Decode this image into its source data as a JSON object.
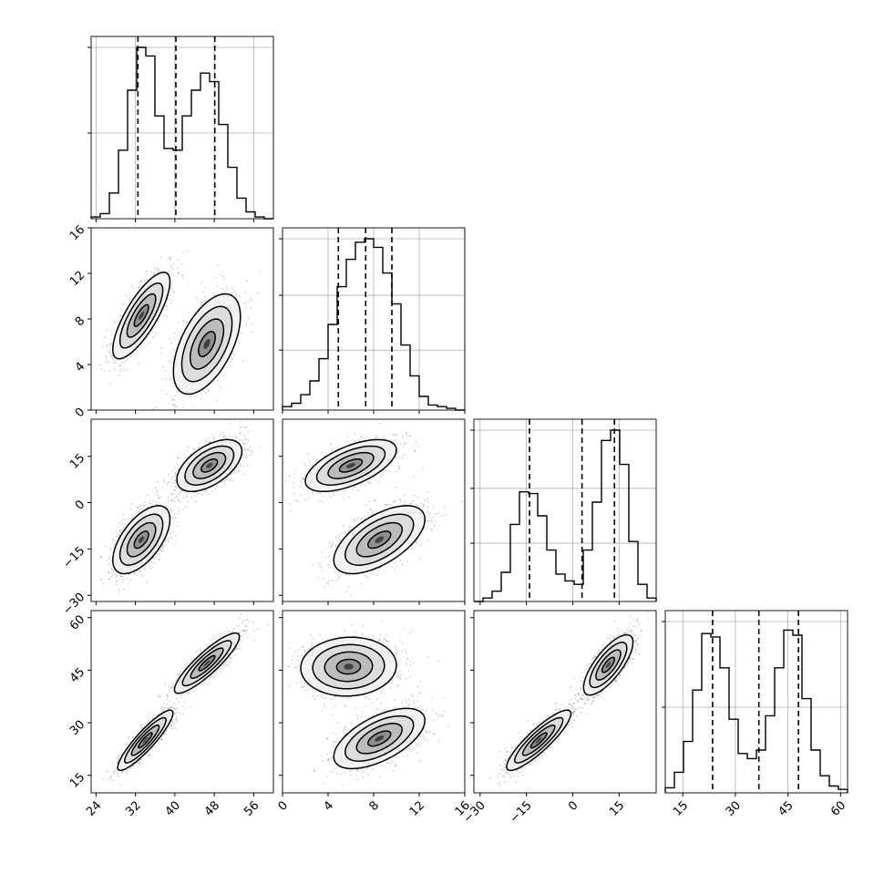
{
  "chart_data": {
    "type": "corner",
    "parameters": [
      {
        "range": [
          23,
          60
        ],
        "ticks": [
          24,
          32,
          40,
          48,
          56
        ],
        "tick_labels": [
          "24",
          "32",
          "40",
          "48",
          "56"
        ]
      },
      {
        "range": [
          0,
          16
        ],
        "ticks": [
          0,
          4,
          8,
          12,
          16
        ],
        "tick_labels": [
          "0",
          "4",
          "8",
          "12",
          "16"
        ]
      },
      {
        "range": [
          -32,
          27
        ],
        "ticks": [
          -30,
          -15,
          0,
          15
        ],
        "tick_labels": [
          "−30",
          "−15",
          "0",
          "15"
        ]
      },
      {
        "range": [
          10,
          62
        ],
        "ticks": [
          15,
          30,
          45,
          60
        ],
        "tick_labels": [
          "15",
          "30",
          "45",
          "60"
        ]
      }
    ],
    "histograms": [
      {
        "bins": [
          23,
          24.85,
          26.7,
          28.55,
          30.4,
          32.25,
          34.1,
          35.95,
          37.8,
          39.65,
          41.5,
          43.35,
          45.2,
          47.05,
          48.9,
          50.75,
          52.6,
          54.45,
          56.3,
          58.15,
          60
        ],
        "counts": [
          0.01,
          0.03,
          0.15,
          0.4,
          0.75,
          1.0,
          0.95,
          0.6,
          0.41,
          0.4,
          0.6,
          0.75,
          0.85,
          0.8,
          0.55,
          0.3,
          0.12,
          0.04,
          0.01,
          0.0
        ],
        "quantiles": [
          32.5,
          40.2,
          48.1
        ],
        "grid": [
          0.5,
          1.0
        ]
      },
      {
        "bins": [
          0,
          0.8,
          1.6,
          2.4,
          3.2,
          4.0,
          4.8,
          5.6,
          6.4,
          7.2,
          8.0,
          8.8,
          9.6,
          10.4,
          11.2,
          12.0,
          12.8,
          13.6,
          14.4,
          15.2,
          16
        ],
        "counts": [
          0.02,
          0.04,
          0.09,
          0.17,
          0.3,
          0.5,
          0.72,
          0.88,
          0.98,
          1.0,
          0.95,
          0.8,
          0.62,
          0.38,
          0.2,
          0.08,
          0.03,
          0.02,
          0.01,
          0.0
        ],
        "quantiles": [
          4.9,
          7.3,
          9.6
        ],
        "grid": [
          0.35,
          0.67,
          1.0
        ]
      },
      {
        "bins": [
          -32,
          -29.05,
          -26.1,
          -23.15,
          -20.2,
          -17.25,
          -14.3,
          -11.35,
          -8.4,
          -5.45,
          -2.5,
          0.45,
          3.4,
          6.35,
          9.3,
          12.25,
          15.2,
          18.15,
          21.1,
          24.05,
          27
        ],
        "counts": [
          0.0,
          0.02,
          0.06,
          0.17,
          0.45,
          0.64,
          0.63,
          0.5,
          0.3,
          0.16,
          0.12,
          0.1,
          0.3,
          0.58,
          0.94,
          1.0,
          0.8,
          0.35,
          0.1,
          0.02
        ],
        "quantiles": [
          -14.0,
          3.0,
          13.5
        ],
        "grid": [
          0.34,
          0.66,
          1.0
        ]
      },
      {
        "bins": [
          10,
          12.6,
          15.2,
          17.8,
          20.4,
          23.0,
          25.6,
          28.2,
          30.8,
          33.4,
          36.0,
          38.6,
          41.2,
          43.8,
          46.4,
          49.0,
          51.6,
          54.2,
          56.8,
          59.4,
          62
        ],
        "counts": [
          0.03,
          0.12,
          0.3,
          0.6,
          0.93,
          0.91,
          0.73,
          0.43,
          0.23,
          0.2,
          0.25,
          0.45,
          0.73,
          0.95,
          0.92,
          0.55,
          0.25,
          0.1,
          0.04,
          0.02
        ],
        "quantiles": [
          23.5,
          36.7,
          48.0
        ],
        "grid": [
          0.5,
          1.0
        ]
      }
    ],
    "scatter_panels": [
      {
        "x_param": 0,
        "y_param": 1,
        "clusters": [
          {
            "mean": [
              33.2,
              8.3
            ],
            "sd": [
              2.9,
              1.9
            ],
            "corr": 0.78,
            "n": 1100
          },
          {
            "mean": [
              46.5,
              5.8
            ],
            "sd": [
              3.4,
              2.2
            ],
            "corr": 0.55,
            "n": 1100
          }
        ]
      },
      {
        "x_param": 0,
        "y_param": 2,
        "clusters": [
          {
            "mean": [
              47.0,
              12.0
            ],
            "sd": [
              3.3,
              4.2
            ],
            "corr": 0.55,
            "n": 1100
          },
          {
            "mean": [
              33.2,
              -12.0
            ],
            "sd": [
              2.9,
              5.5
            ],
            "corr": 0.6,
            "n": 1100
          }
        ]
      },
      {
        "x_param": 1,
        "y_param": 2,
        "clusters": [
          {
            "mean": [
              6.0,
              12.0
            ],
            "sd": [
              2.0,
              4.2
            ],
            "corr": 0.6,
            "n": 1100
          },
          {
            "mean": [
              8.5,
              -12.0
            ],
            "sd": [
              2.0,
              5.5
            ],
            "corr": 0.6,
            "n": 1100
          }
        ]
      },
      {
        "x_param": 0,
        "y_param": 3,
        "clusters": [
          {
            "mean": [
              34.0,
              25.0
            ],
            "sd": [
              2.8,
              4.3
            ],
            "corr": 0.9,
            "n": 1100
          },
          {
            "mean": [
              46.5,
              47.0
            ],
            "sd": [
              3.3,
              4.3
            ],
            "corr": 0.88,
            "n": 1100
          }
        ]
      },
      {
        "x_param": 1,
        "y_param": 3,
        "clusters": [
          {
            "mean": [
              5.8,
              46.0
            ],
            "sd": [
              2.1,
              4.2
            ],
            "corr": 0.05,
            "n": 1100
          },
          {
            "mean": [
              8.5,
              25.5
            ],
            "sd": [
              2.0,
              4.3
            ],
            "corr": 0.6,
            "n": 1100
          }
        ]
      },
      {
        "x_param": 2,
        "y_param": 3,
        "clusters": [
          {
            "mean": [
              -11.0,
              25.0
            ],
            "sd": [
              5.2,
              4.3
            ],
            "corr": 0.88,
            "n": 1100
          },
          {
            "mean": [
              11.5,
              46.5
            ],
            "sd": [
              4.0,
              4.3
            ],
            "corr": 0.75,
            "n": 1100
          }
        ]
      }
    ],
    "grid": true
  }
}
